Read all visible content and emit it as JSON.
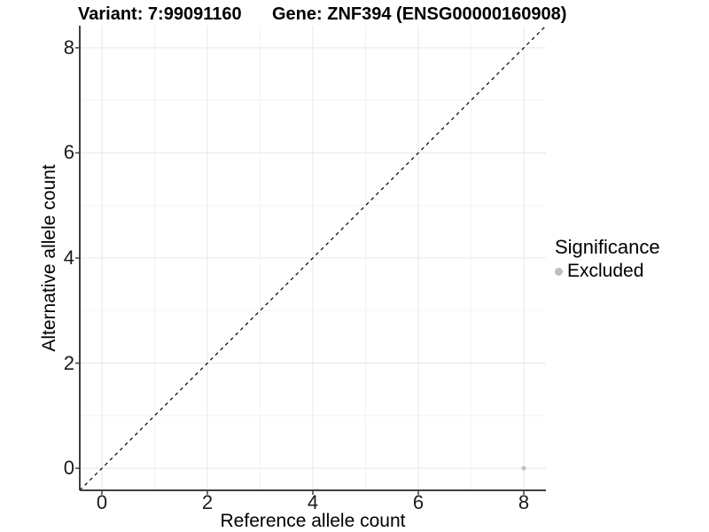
{
  "header": {
    "variant_title": "Variant: 7:99091160",
    "gene_title": "Gene: ZNF394 (ENSG00000160908)"
  },
  "chart_data": {
    "type": "scatter",
    "title_left": "Variant: 7:99091160",
    "title_right": "Gene: ZNF394 (ENSG00000160908)",
    "xlabel": "Reference allele count",
    "ylabel": "Alternative allele count",
    "xlim": [
      -0.42,
      8.42
    ],
    "ylim": [
      -0.42,
      8.42
    ],
    "x_major_ticks": [
      0,
      2,
      4,
      6,
      8
    ],
    "x_minor_ticks": [
      1,
      3,
      5,
      7
    ],
    "y_major_ticks": [
      0,
      2,
      4,
      6,
      8
    ],
    "y_minor_ticks": [
      1,
      3,
      5,
      7
    ],
    "grid": {
      "show": true,
      "major_color": "#e7e7e7",
      "minor_color": "#f3f3f3"
    },
    "axis_color": "#3f3f3f",
    "identity_line": {
      "style": "dashed",
      "color": "#000000"
    },
    "series": [
      {
        "name": "Excluded",
        "color": "#c2c2c2",
        "point_radius": 2.6,
        "points": [
          {
            "x": 8,
            "y": 0
          }
        ]
      }
    ],
    "legend": {
      "title": "Significance",
      "position": "right",
      "entries": [
        {
          "label": "Excluded",
          "color": "#bdbdbd"
        }
      ]
    }
  }
}
